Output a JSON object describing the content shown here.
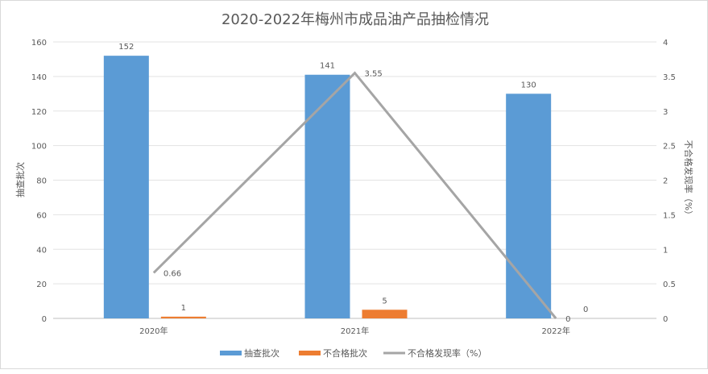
{
  "chart_data": {
    "type": "bar+line",
    "title": "2020-2022年梅州市成品油产品抽检情况",
    "categories": [
      "2020年",
      "2021年",
      "2022年"
    ],
    "ylabel": "抽查批次",
    "y2label": "不合格发现率（%）",
    "ylim": [
      0,
      160
    ],
    "yticks": [
      0,
      20,
      40,
      60,
      80,
      100,
      120,
      140,
      160
    ],
    "y2lim": [
      0,
      4
    ],
    "y2ticks": [
      "0",
      "0.5",
      "1",
      "1.5",
      "2",
      "2.5",
      "3",
      "3.5",
      "4"
    ],
    "grid": true,
    "legend_position": "bottom",
    "series": [
      {
        "name": "抽查批次",
        "type": "bar",
        "axis": "left",
        "color": "#5b9bd5",
        "values": [
          152,
          141,
          130
        ]
      },
      {
        "name": "不合格批次",
        "type": "bar",
        "axis": "left",
        "color": "#ed7d31",
        "values": [
          1,
          5,
          0
        ]
      },
      {
        "name": "不合格发现率（%）",
        "type": "line",
        "axis": "right",
        "color": "#a5a5a5",
        "values": [
          0.66,
          3.55,
          0
        ]
      }
    ]
  }
}
